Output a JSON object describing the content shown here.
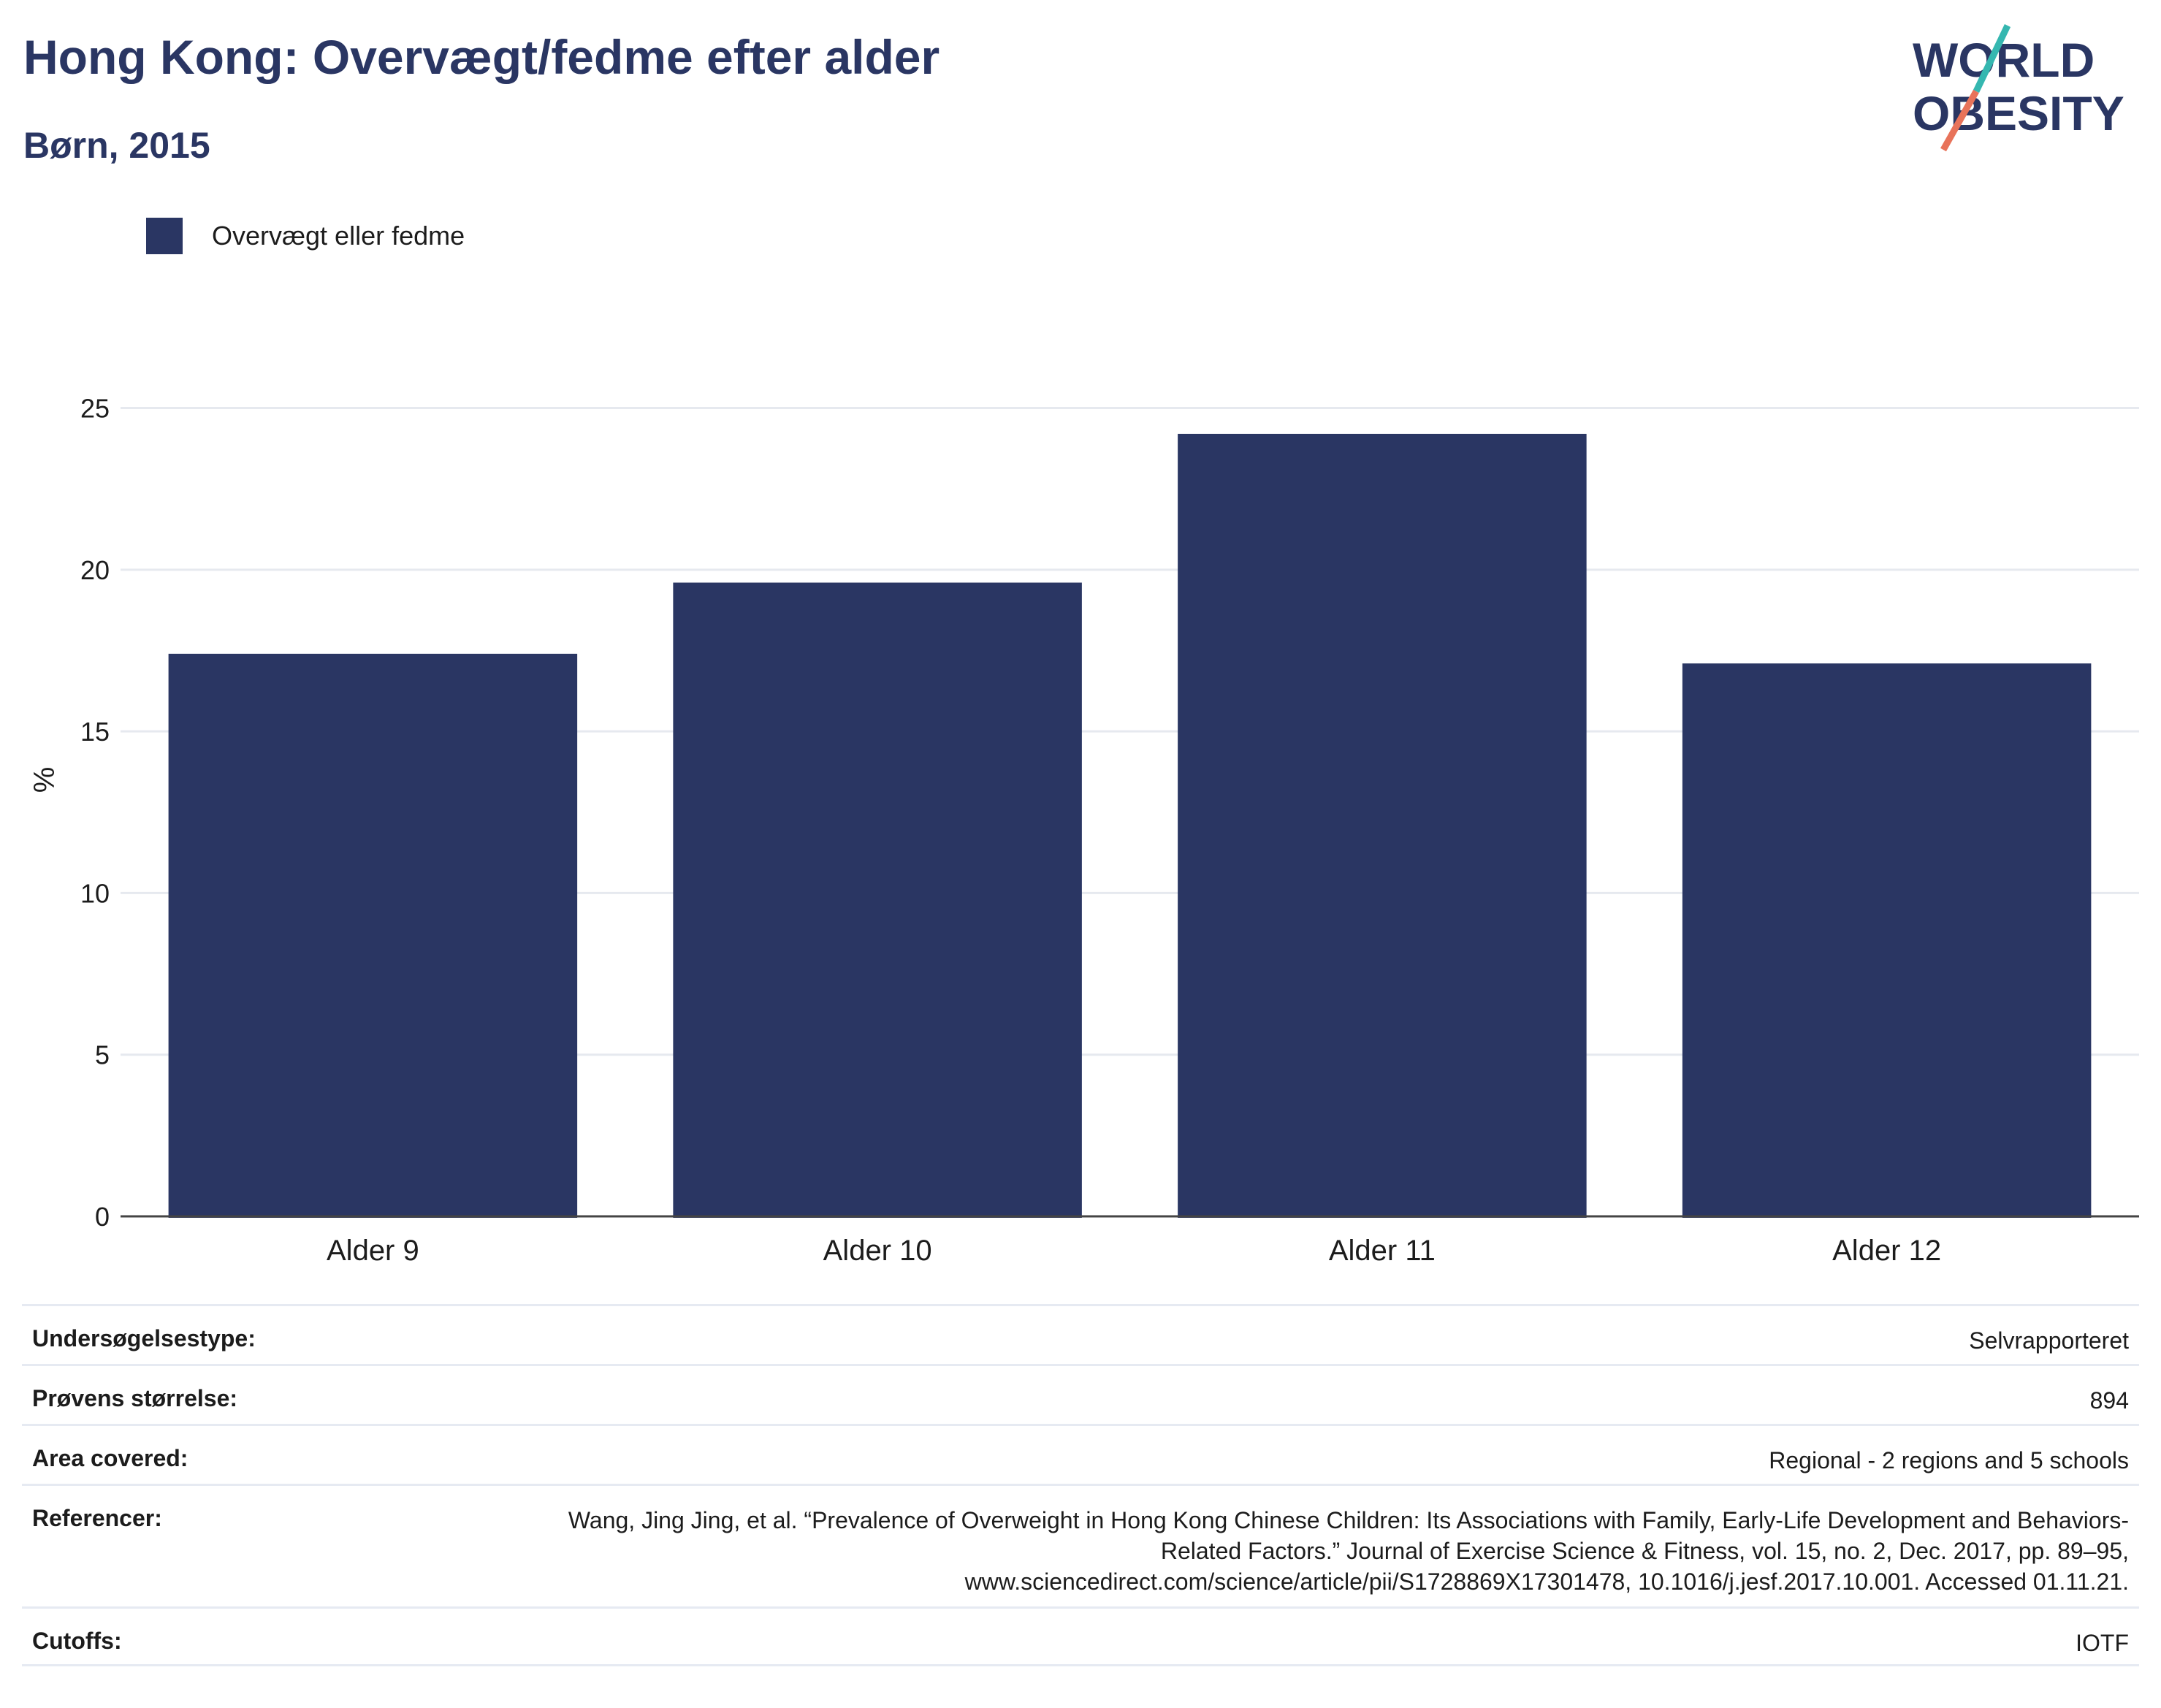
{
  "header": {
    "title": "Hong Kong: Overvægt/fedme efter alder",
    "subtitle": "Børn, 2015"
  },
  "logo": {
    "line1": "WORLD",
    "line2": "OBESITY",
    "accent_teal": "#35b7b0",
    "accent_coral": "#e8735a"
  },
  "legend": {
    "label": "Overvægt eller fedme",
    "color": "#2a3663"
  },
  "chart_data": {
    "type": "bar",
    "categories": [
      "Alder 9",
      "Alder 10",
      "Alder 11",
      "Alder 12"
    ],
    "series": [
      {
        "name": "Overvægt eller fedme",
        "values": [
          17.4,
          19.6,
          24.2,
          17.1
        ]
      }
    ],
    "ylabel": "%",
    "xlabel": "",
    "ylim": [
      0,
      27
    ],
    "yticks": [
      0,
      5,
      10,
      15,
      20,
      25
    ],
    "grid": true,
    "legend_position": "top-left",
    "bar_color": "#2a3663"
  },
  "info": [
    {
      "key": "Undersøgelsestype:",
      "value": "Selvrapporteret"
    },
    {
      "key": "Prøvens størrelse:",
      "value": "894"
    },
    {
      "key": "Area covered:",
      "value": "Regional - 2 regions and 5 schools"
    },
    {
      "key": "Referencer:",
      "value": "Wang, Jing Jing, et al. “Prevalence of Overweight in Hong Kong Chinese Children: Its Associations with Family, Early-Life Development and Behaviors-Related Factors.” Journal of Exercise Science & Fitness, vol. 15, no. 2, Dec. 2017, pp. 89–95, www.sciencedirect.com/science/article/pii/S1728869X17301478, 10.1016/j.jesf.2017.10.001. Accessed 01.11.21."
    },
    {
      "key": "Cutoffs:",
      "value": "IOTF"
    }
  ]
}
